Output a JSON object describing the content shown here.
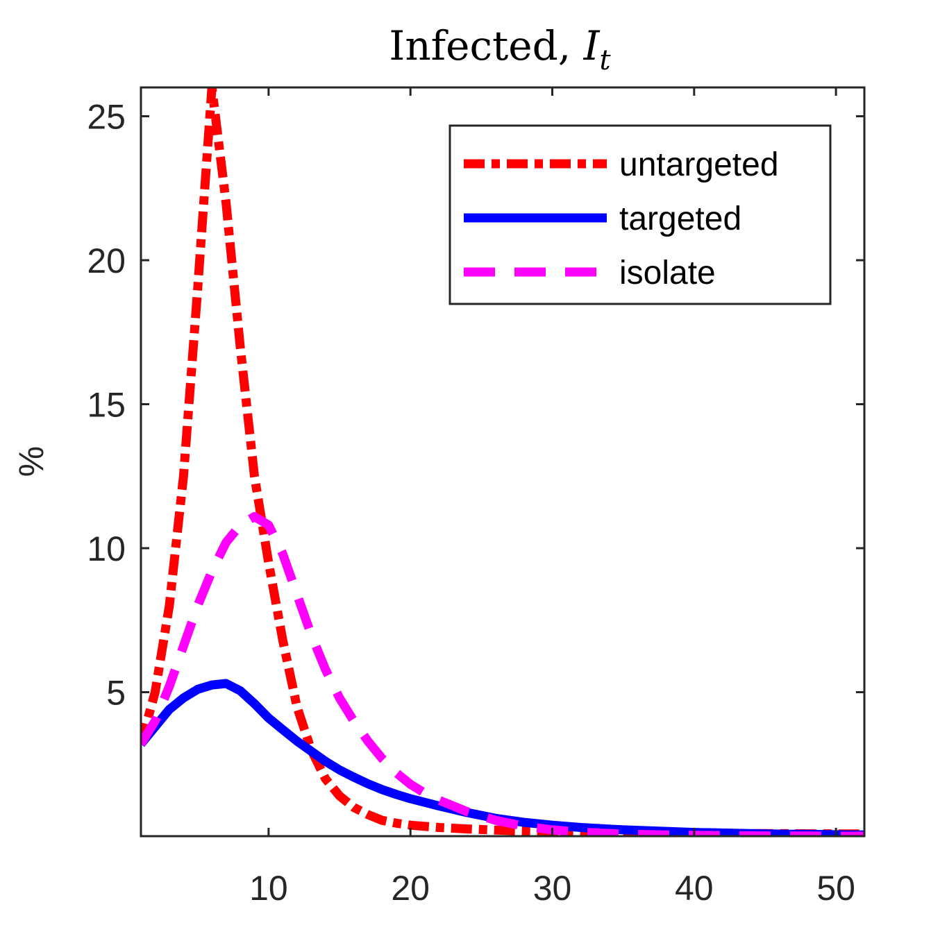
{
  "chart_data": {
    "type": "line",
    "title": "Infected, ",
    "title_variable": "I",
    "title_subscript": "t",
    "xlabel": "",
    "ylabel": "%",
    "xlim": [
      1,
      52
    ],
    "ylim": [
      0,
      26
    ],
    "xticks": [
      10,
      20,
      30,
      40,
      50
    ],
    "yticks": [
      5,
      10,
      15,
      20,
      25
    ],
    "grid": false,
    "legend_position": "top-right",
    "series": [
      {
        "name": "untargeted",
        "color": "#ff0000",
        "style": "dash-dot",
        "x": [
          1,
          2,
          3,
          4,
          5,
          6,
          7,
          8,
          9,
          10,
          11,
          12,
          13,
          14,
          15,
          16,
          17,
          18,
          19,
          20,
          22,
          24,
          26,
          28,
          30,
          32,
          35,
          40,
          45,
          50,
          52
        ],
        "y": [
          3.2,
          5.0,
          8.0,
          12.5,
          19.0,
          26.0,
          22.0,
          17.0,
          12.5,
          9.5,
          6.8,
          4.5,
          3.0,
          2.0,
          1.4,
          1.0,
          0.75,
          0.55,
          0.45,
          0.38,
          0.3,
          0.25,
          0.21,
          0.18,
          0.16,
          0.14,
          0.12,
          0.1,
          0.09,
          0.08,
          0.08
        ]
      },
      {
        "name": "targeted",
        "color": "#0000ff",
        "style": "solid",
        "x": [
          1,
          2,
          3,
          4,
          5,
          6,
          7,
          8,
          9,
          10,
          11,
          12,
          13,
          14,
          15,
          16,
          17,
          18,
          19,
          20,
          22,
          24,
          26,
          28,
          30,
          32,
          35,
          40,
          45,
          50,
          52
        ],
        "y": [
          3.2,
          3.8,
          4.4,
          4.8,
          5.1,
          5.25,
          5.3,
          5.05,
          4.6,
          4.1,
          3.7,
          3.3,
          2.95,
          2.6,
          2.3,
          2.05,
          1.82,
          1.62,
          1.45,
          1.3,
          1.05,
          0.82,
          0.62,
          0.48,
          0.38,
          0.3,
          0.22,
          0.13,
          0.08,
          0.05,
          0.04
        ]
      },
      {
        "name": "isolate",
        "color": "#ff00ff",
        "style": "dashed",
        "x": [
          1,
          2,
          3,
          4,
          5,
          6,
          7,
          8,
          9,
          10,
          11,
          12,
          13,
          14,
          15,
          16,
          17,
          18,
          19,
          20,
          21,
          22,
          24,
          26,
          28,
          30,
          32,
          35,
          40,
          45,
          50,
          52
        ],
        "y": [
          3.2,
          4.0,
          5.2,
          6.6,
          8.0,
          9.2,
          10.2,
          10.8,
          11.1,
          10.8,
          9.8,
          8.4,
          7.0,
          5.8,
          4.8,
          4.0,
          3.3,
          2.7,
          2.2,
          1.8,
          1.5,
          1.25,
          0.85,
          0.55,
          0.35,
          0.22,
          0.14,
          0.07,
          0.03,
          0.01,
          0.0,
          0.0
        ]
      }
    ]
  }
}
